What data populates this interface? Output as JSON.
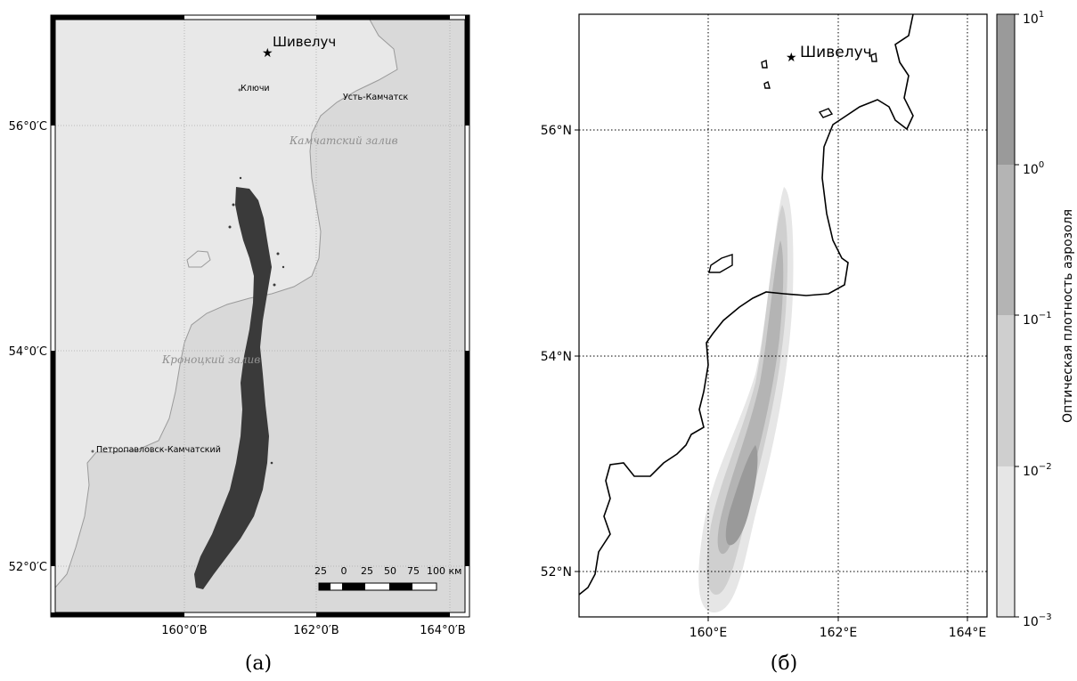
{
  "panel_a": {
    "caption": "(a)",
    "volcano": "Шивелуч",
    "towns": {
      "klyuchi": "Ключи",
      "ust_kamchatsk": "Усть-Камчатск",
      "petropavlovsk": "Петропавловск-Камчатский"
    },
    "bays": {
      "kamchatsky": "Камчатский залив",
      "kronotsky": "Кроноцкий залив"
    },
    "lat_labels": [
      "56°0′С",
      "54°0′С",
      "52°0′С"
    ],
    "lon_labels": [
      "160°0′В",
      "162°0′В",
      "164°0′В"
    ],
    "scale_bar": {
      "ticks": [
        "25",
        "0",
        "25",
        "50",
        "75",
        "100 км"
      ]
    },
    "colors": {
      "land": "#e8e8e8",
      "sea": "#d9d9d9",
      "plume": "#3a3a3a"
    }
  },
  "panel_b": {
    "caption": "(б)",
    "volcano": "Шивелуч",
    "lat_labels": [
      "56°N",
      "54°N",
      "52°N"
    ],
    "lon_labels": [
      "160°E",
      "162°E",
      "164°E"
    ],
    "colorbar": {
      "title": "Оптическая плотность аэрозоля",
      "scale": "log",
      "tick_labels": [
        {
          "base": "10",
          "exp": "1"
        },
        {
          "base": "10",
          "exp": "0"
        },
        {
          "base": "10",
          "exp": "−1"
        },
        {
          "base": "10",
          "exp": "−2"
        },
        {
          "base": "10",
          "exp": "−3"
        }
      ],
      "levels": [
        0.001,
        0.01,
        0.1,
        1,
        10
      ],
      "colors": [
        "#e6e6e6",
        "#cfcfcf",
        "#b4b4b4",
        "#9a9a9a"
      ]
    }
  }
}
